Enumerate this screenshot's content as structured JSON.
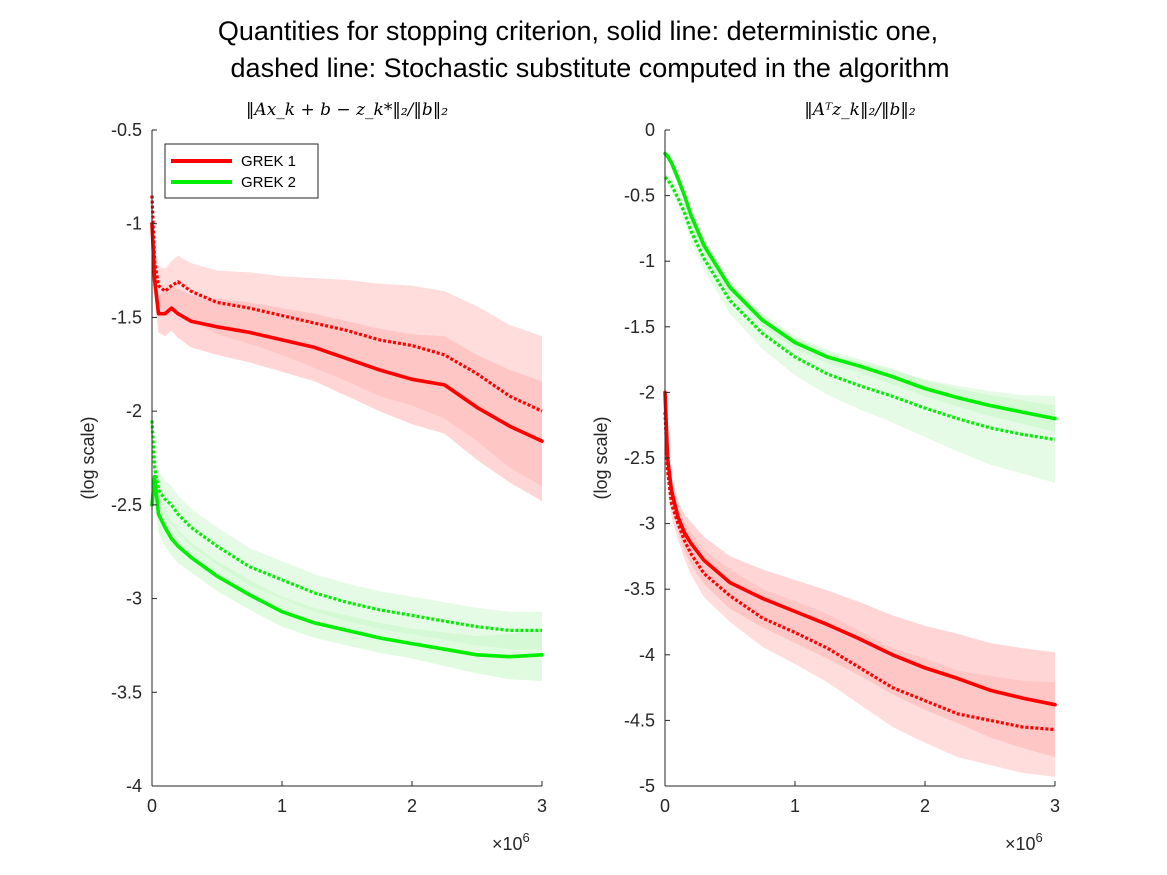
{
  "figure": {
    "title_line1": "Quantities for stopping criterion, solid line: deterministic one,",
    "title_line2": "dashed line: Stochastic substitute computed in the algorithm"
  },
  "colors": {
    "grek1": "#ff0000",
    "grek2": "#00ee00",
    "grek1_band": "#ffb3b3",
    "grek2_band": "#c8f7c8"
  },
  "chart_data": [
    {
      "type": "line",
      "title": "‖Ax_k + b − z_k*‖₂/‖b‖₂",
      "xlabel": "",
      "ylabel": "(log scale)",
      "xlim": [
        0,
        3
      ],
      "ylim": [
        -4,
        -0.5
      ],
      "x_ticks": [
        0,
        1,
        2,
        3
      ],
      "x_tick_labels": [
        "0",
        "1",
        "2",
        "3"
      ],
      "y_ticks": [
        -4,
        -3.5,
        -3,
        -2.5,
        -2,
        -1.5,
        -1,
        -0.5
      ],
      "y_tick_labels": [
        "-4",
        "-3.5",
        "-3",
        "-2.5",
        "-2",
        "-1.5",
        "-1",
        "-0.5"
      ],
      "x_exponent_label": "×10",
      "x_exponent": "6",
      "grid": false,
      "legend": {
        "placement": "top-left",
        "entries": [
          "GREK 1",
          "GREK 2"
        ]
      },
      "x": [
        0,
        0.02,
        0.05,
        0.1,
        0.15,
        0.2,
        0.3,
        0.5,
        0.75,
        1.0,
        1.25,
        1.5,
        1.75,
        2.0,
        2.25,
        2.5,
        2.75,
        3.0
      ],
      "series": [
        {
          "name": "GREK 1",
          "style": "solid",
          "color": "grek1",
          "values": [
            -1.0,
            -1.3,
            -1.48,
            -1.48,
            -1.45,
            -1.48,
            -1.52,
            -1.55,
            -1.58,
            -1.62,
            -1.66,
            -1.72,
            -1.78,
            -1.83,
            -1.86,
            -1.98,
            -2.08,
            -2.16
          ],
          "band": [
            0.05,
            0.08,
            0.1,
            0.12,
            0.12,
            0.13,
            0.14,
            0.15,
            0.16,
            0.17,
            0.18,
            0.2,
            0.22,
            0.24,
            0.26,
            0.28,
            0.3,
            0.32
          ]
        },
        {
          "name": "GREK 1",
          "style": "dashed",
          "color": "grek1",
          "values": [
            -0.85,
            -1.2,
            -1.33,
            -1.36,
            -1.33,
            -1.31,
            -1.36,
            -1.42,
            -1.45,
            -1.49,
            -1.53,
            -1.57,
            -1.62,
            -1.65,
            -1.7,
            -1.8,
            -1.92,
            -2.0
          ],
          "band": [
            0.05,
            0.08,
            0.1,
            0.12,
            0.13,
            0.14,
            0.15,
            0.17,
            0.19,
            0.21,
            0.24,
            0.27,
            0.3,
            0.32,
            0.34,
            0.36,
            0.38,
            0.4
          ]
        },
        {
          "name": "GREK 2",
          "style": "solid",
          "color": "grek2",
          "values": [
            -2.5,
            -2.35,
            -2.55,
            -2.62,
            -2.68,
            -2.72,
            -2.78,
            -2.88,
            -2.98,
            -3.07,
            -3.13,
            -3.17,
            -3.21,
            -3.24,
            -3.27,
            -3.3,
            -3.31,
            -3.3
          ],
          "band": [
            0.08,
            0.1,
            0.1,
            0.1,
            0.09,
            0.09,
            0.08,
            0.08,
            0.08,
            0.08,
            0.08,
            0.08,
            0.08,
            0.08,
            0.09,
            0.1,
            0.12,
            0.14
          ]
        },
        {
          "name": "GREK 2",
          "style": "dashed",
          "color": "grek2",
          "values": [
            -2.05,
            -2.3,
            -2.42,
            -2.47,
            -2.5,
            -2.55,
            -2.62,
            -2.72,
            -2.83,
            -2.9,
            -2.97,
            -3.02,
            -3.06,
            -3.09,
            -3.12,
            -3.15,
            -3.17,
            -3.17
          ],
          "band": [
            0.08,
            0.1,
            0.1,
            0.1,
            0.1,
            0.1,
            0.1,
            0.1,
            0.1,
            0.1,
            0.1,
            0.1,
            0.1,
            0.1,
            0.1,
            0.1,
            0.1,
            0.1
          ]
        }
      ]
    },
    {
      "type": "line",
      "title": "‖Aᵀz_k‖₂/‖b‖₂",
      "xlabel": "",
      "ylabel": "(log scale)",
      "xlim": [
        0,
        3
      ],
      "ylim": [
        -5,
        0
      ],
      "x_ticks": [
        0,
        1,
        2,
        3
      ],
      "x_tick_labels": [
        "0",
        "1",
        "2",
        "3"
      ],
      "y_ticks": [
        -5,
        -4.5,
        -4,
        -3.5,
        -3,
        -2.5,
        -2,
        -1.5,
        -1,
        -0.5,
        0
      ],
      "y_tick_labels": [
        "-5",
        "-4.5",
        "-4",
        "-3.5",
        "-3",
        "-2.5",
        "-2",
        "-1.5",
        "-1",
        "-0.5",
        "0"
      ],
      "x_exponent_label": "×10",
      "x_exponent": "6",
      "grid": false,
      "x": [
        0,
        0.02,
        0.05,
        0.1,
        0.15,
        0.2,
        0.3,
        0.5,
        0.75,
        1.0,
        1.25,
        1.5,
        1.75,
        2.0,
        2.25,
        2.5,
        2.75,
        3.0
      ],
      "series": [
        {
          "name": "GREK 2",
          "style": "solid",
          "color": "grek2",
          "values": [
            -0.18,
            -0.2,
            -0.25,
            -0.37,
            -0.5,
            -0.65,
            -0.88,
            -1.2,
            -1.45,
            -1.62,
            -1.73,
            -1.8,
            -1.88,
            -1.97,
            -2.04,
            -2.1,
            -2.15,
            -2.2
          ],
          "band": [
            0.03,
            0.03,
            0.04,
            0.04,
            0.04,
            0.05,
            0.05,
            0.05,
            0.05,
            0.05,
            0.05,
            0.05,
            0.06,
            0.06,
            0.07,
            0.08,
            0.09,
            0.1
          ]
        },
        {
          "name": "GREK 2",
          "style": "dashed",
          "color": "grek2",
          "values": [
            -0.36,
            -0.38,
            -0.42,
            -0.52,
            -0.63,
            -0.77,
            -0.98,
            -1.3,
            -1.55,
            -1.73,
            -1.86,
            -1.95,
            -2.03,
            -2.12,
            -2.2,
            -2.27,
            -2.32,
            -2.36
          ],
          "band": [
            0.03,
            0.04,
            0.05,
            0.06,
            0.07,
            0.08,
            0.09,
            0.1,
            0.12,
            0.14,
            0.16,
            0.18,
            0.2,
            0.22,
            0.25,
            0.28,
            0.3,
            0.33
          ]
        },
        {
          "name": "GREK 1",
          "style": "solid",
          "color": "grek1",
          "values": [
            -2.0,
            -2.5,
            -2.75,
            -2.95,
            -3.07,
            -3.15,
            -3.28,
            -3.45,
            -3.57,
            -3.67,
            -3.77,
            -3.88,
            -4.0,
            -4.1,
            -4.18,
            -4.27,
            -4.33,
            -4.38
          ],
          "band": [
            0.05,
            0.08,
            0.1,
            0.12,
            0.14,
            0.16,
            0.18,
            0.2,
            0.22,
            0.24,
            0.26,
            0.28,
            0.3,
            0.32,
            0.34,
            0.36,
            0.38,
            0.4
          ]
        },
        {
          "name": "GREK 1",
          "style": "dashed",
          "color": "grek1",
          "values": [
            -2.15,
            -2.6,
            -2.85,
            -3.0,
            -3.13,
            -3.23,
            -3.38,
            -3.55,
            -3.72,
            -3.83,
            -3.95,
            -4.1,
            -4.25,
            -4.35,
            -4.45,
            -4.5,
            -4.55,
            -4.57
          ],
          "band": [
            0.05,
            0.08,
            0.1,
            0.12,
            0.14,
            0.16,
            0.18,
            0.2,
            0.22,
            0.24,
            0.26,
            0.28,
            0.3,
            0.32,
            0.33,
            0.34,
            0.35,
            0.36
          ]
        }
      ]
    }
  ]
}
